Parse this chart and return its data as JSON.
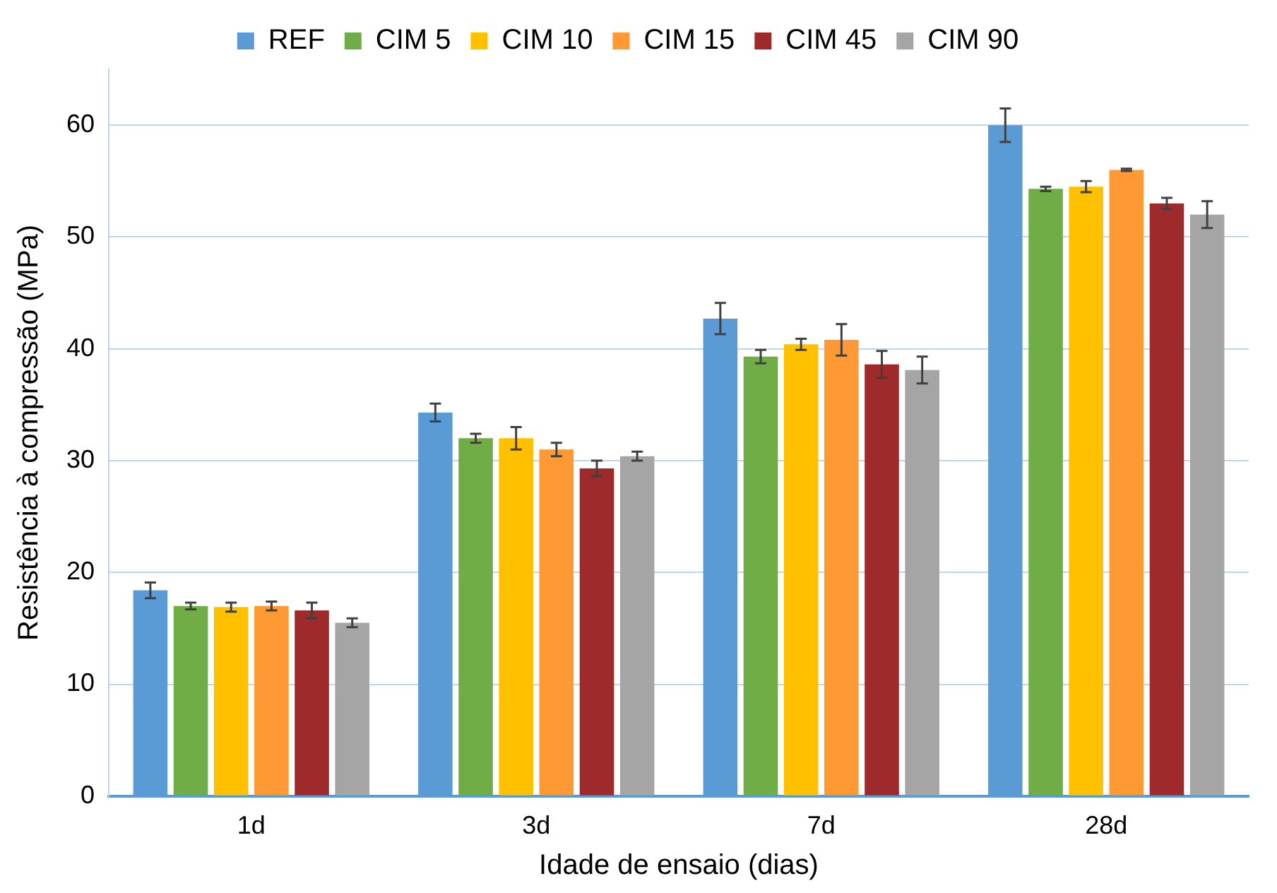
{
  "chart_data": {
    "type": "bar",
    "xlabel": "Idade de ensaio (dias)",
    "ylabel": "Resistência à compressão (MPa)",
    "categories": [
      "1d",
      "3d",
      "7d",
      "28d"
    ],
    "series": [
      {
        "name": "REF",
        "color": "#5b9bd5",
        "values": [
          18.4,
          34.3,
          42.7,
          60.0
        ],
        "errors": [
          0.7,
          0.8,
          1.4,
          1.5
        ]
      },
      {
        "name": "CIM 5",
        "color": "#70ad47",
        "values": [
          17.0,
          32.0,
          39.3,
          54.3
        ],
        "errors": [
          0.3,
          0.4,
          0.6,
          0.2
        ]
      },
      {
        "name": "CIM 10",
        "color": "#ffc000",
        "values": [
          16.9,
          32.0,
          40.4,
          54.5
        ],
        "errors": [
          0.4,
          1.0,
          0.5,
          0.5
        ]
      },
      {
        "name": "CIM 15",
        "color": "#ff9933",
        "values": [
          17.0,
          31.0,
          40.8,
          56.0
        ],
        "errors": [
          0.4,
          0.6,
          1.4,
          0.1
        ]
      },
      {
        "name": "CIM 45",
        "color": "#9e2a2b",
        "values": [
          16.6,
          29.3,
          38.6,
          53.0
        ],
        "errors": [
          0.7,
          0.7,
          1.2,
          0.5
        ]
      },
      {
        "name": "CIM 90",
        "color": "#a5a5a5",
        "values": [
          15.5,
          30.4,
          38.1,
          52.0
        ],
        "errors": [
          0.4,
          0.4,
          1.2,
          1.2
        ]
      }
    ],
    "ylim": [
      0,
      65
    ],
    "yticks": [
      0,
      10,
      20,
      30,
      40,
      50,
      60
    ],
    "grid": "y",
    "legend": "top"
  }
}
